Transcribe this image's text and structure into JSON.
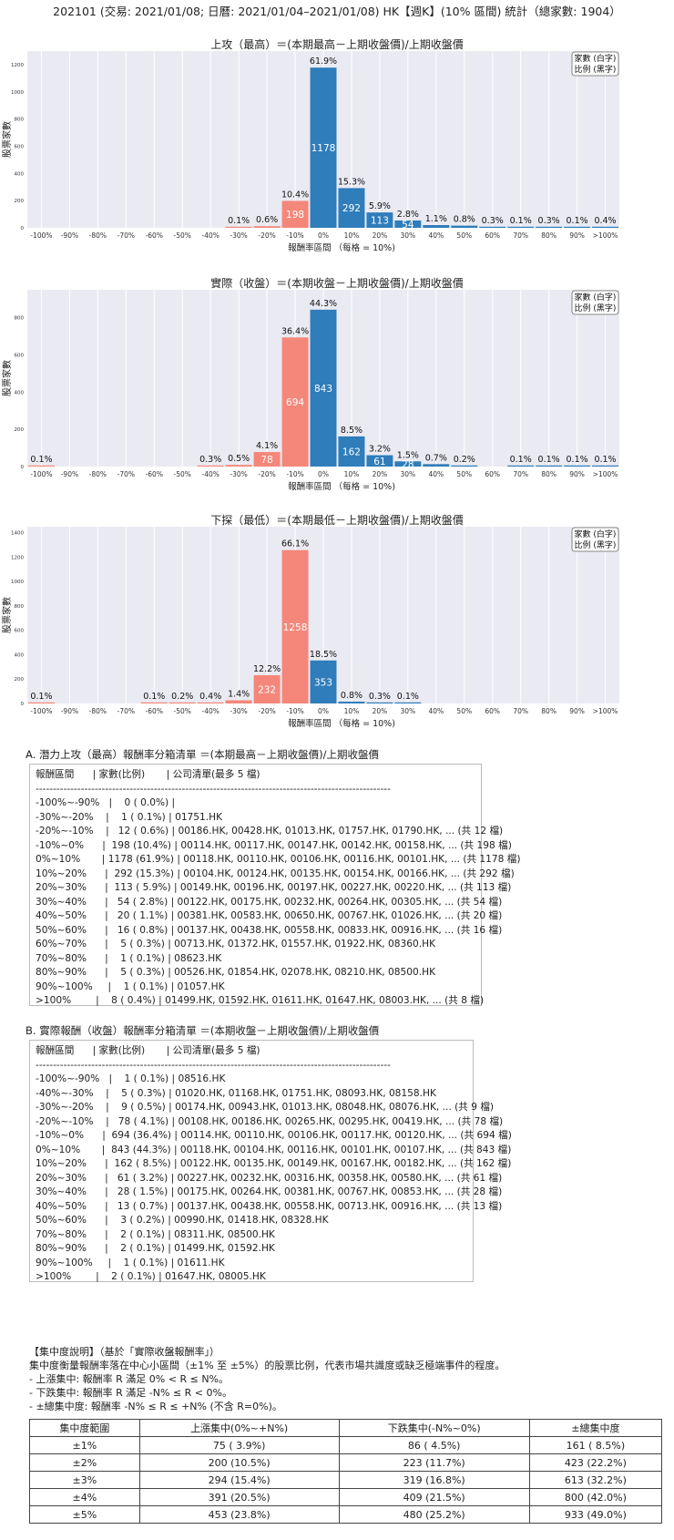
{
  "page_title": "202101 (交易: 2021/01/08; 日曆: 2021/01/04–2021/01/08) HK【週K】(10% 區間) 統計（總家數: 1904）",
  "legend_line1": "家數 (白字)",
  "legend_line2": "比例 (黑字)",
  "chart_data": [
    {
      "type": "bar",
      "title": "上攻（最高）＝(本期最高－上期收盤價)/上期收盤價",
      "xlabel": "報酬率區間 （每格 = 10%)",
      "ylabel": "股票家數",
      "ylim": [
        0,
        1300
      ],
      "yticks": [
        0,
        200,
        400,
        600,
        800,
        1000,
        1200
      ],
      "categories": [
        "-100%",
        "-90%",
        "-80%",
        "-70%",
        "-60%",
        "-50%",
        "-40%",
        "-30%",
        "-20%",
        "-10%",
        "0%",
        "10%",
        "20%",
        "30%",
        "40%",
        "50%",
        "60%",
        "70%",
        "80%",
        "90%",
        ">100%"
      ],
      "counts": [
        0,
        0,
        0,
        0,
        0,
        0,
        0,
        1,
        12,
        198,
        1178,
        292,
        113,
        54,
        20,
        16,
        5,
        1,
        5,
        1,
        8
      ],
      "pct_labels": [
        "",
        "",
        "",
        "",
        "",
        "",
        "",
        "0.1%",
        "0.6%",
        "10.4%",
        "61.9%",
        "15.3%",
        "5.9%",
        "2.8%",
        "1.1%",
        "0.8%",
        "0.3%",
        "0.1%",
        "0.3%",
        "0.1%",
        "0.4%"
      ],
      "count_labels": [
        "",
        "",
        "",
        "",
        "",
        "",
        "",
        "",
        "",
        "198",
        "1178",
        "292",
        "113",
        "54",
        "",
        "",
        "",
        "",
        "",
        "",
        ""
      ]
    },
    {
      "type": "bar",
      "title": "實際（收盤）＝(本期收盤－上期收盤價)/上期收盤價",
      "xlabel": "報酬率區間 （每格 = 10%)",
      "ylabel": "股票家數",
      "ylim": [
        0,
        950
      ],
      "yticks": [
        0,
        200,
        400,
        600,
        800
      ],
      "categories": [
        "-100%",
        "-90%",
        "-80%",
        "-70%",
        "-60%",
        "-50%",
        "-40%",
        "-30%",
        "-20%",
        "-10%",
        "0%",
        "10%",
        "20%",
        "30%",
        "40%",
        "50%",
        "60%",
        "70%",
        "80%",
        "90%",
        ">100%"
      ],
      "counts": [
        1,
        0,
        0,
        0,
        0,
        0,
        5,
        9,
        78,
        694,
        843,
        162,
        61,
        28,
        13,
        3,
        0,
        2,
        2,
        1,
        2
      ],
      "pct_labels": [
        "0.1%",
        "",
        "",
        "",
        "",
        "",
        "0.3%",
        "0.5%",
        "4.1%",
        "36.4%",
        "44.3%",
        "8.5%",
        "3.2%",
        "1.5%",
        "0.7%",
        "0.2%",
        "",
        "0.1%",
        "0.1%",
        "0.1%",
        "0.1%"
      ],
      "count_labels": [
        "",
        "",
        "",
        "",
        "",
        "",
        "",
        "",
        "78",
        "694",
        "843",
        "162",
        "61",
        "28",
        "",
        "",
        "",
        "",
        "",
        "",
        ""
      ]
    },
    {
      "type": "bar",
      "title": "下探（最低）＝(本期最低－上期收盤價)/上期收盤價",
      "xlabel": "報酬率區間 （每格 = 10%)",
      "ylabel": "股票家數",
      "ylim": [
        0,
        1450
      ],
      "yticks": [
        0,
        200,
        400,
        600,
        800,
        1000,
        1200,
        1400
      ],
      "categories": [
        "-100%",
        "-90%",
        "-80%",
        "-70%",
        "-60%",
        "-50%",
        "-40%",
        "-30%",
        "-20%",
        "-10%",
        "0%",
        "10%",
        "20%",
        "30%",
        "40%",
        "50%",
        "60%",
        "70%",
        "80%",
        "90%",
        ">100%"
      ],
      "counts": [
        1,
        0,
        0,
        0,
        1,
        4,
        8,
        26,
        232,
        1258,
        353,
        15,
        5,
        1,
        0,
        0,
        0,
        0,
        0,
        0,
        0
      ],
      "pct_labels": [
        "0.1%",
        "",
        "",
        "",
        "0.1%",
        "0.2%",
        "0.4%",
        "1.4%",
        "12.2%",
        "66.1%",
        "18.5%",
        "0.8%",
        "0.3%",
        "0.1%",
        "",
        "",
        "",
        "",
        "",
        "",
        ""
      ],
      "count_labels": [
        "",
        "",
        "",
        "",
        "",
        "",
        "",
        "",
        "232",
        "1258",
        "353",
        "",
        "",
        "",
        "",
        "",
        "",
        "",
        "",
        "",
        ""
      ]
    }
  ],
  "section_a": {
    "title": "A. 潛力上攻（最高）報酬率分箱清單 ＝(本期最高－上期收盤價)/上期收盤價",
    "lines": [
      "報酬區間      | 家數(比例)       | 公司清單(最多 5 檔)",
      "------------------------------------------------------------------------------------------------------",
      "-100%~-90%   |    0 ( 0.0%) |",
      "-30%~-20%    |    1 ( 0.1%) | 01751.HK",
      "-20%~-10%    |   12 ( 0.6%) | 00186.HK, 00428.HK, 01013.HK, 01757.HK, 01790.HK, ... (共 12 檔)",
      "-10%~0%      |  198 (10.4%) | 00114.HK, 00117.HK, 00147.HK, 00142.HK, 00158.HK, ... (共 198 檔)",
      "0%~10%       | 1178 (61.9%) | 00118.HK, 00110.HK, 00106.HK, 00116.HK, 00101.HK, ... (共 1178 檔)",
      "10%~20%      |  292 (15.3%) | 00104.HK, 00124.HK, 00135.HK, 00154.HK, 00166.HK, ... (共 292 檔)",
      "20%~30%      |  113 ( 5.9%) | 00149.HK, 00196.HK, 00197.HK, 00227.HK, 00220.HK, ... (共 113 檔)",
      "30%~40%      |   54 ( 2.8%) | 00122.HK, 00175.HK, 00232.HK, 00264.HK, 00305.HK, ... (共 54 檔)",
      "40%~50%      |   20 ( 1.1%) | 00381.HK, 00583.HK, 00650.HK, 00767.HK, 01026.HK, ... (共 20 檔)",
      "50%~60%      |   16 ( 0.8%) | 00137.HK, 00438.HK, 00558.HK, 00833.HK, 00916.HK, ... (共 16 檔)",
      "60%~70%      |    5 ( 0.3%) | 00713.HK, 01372.HK, 01557.HK, 01922.HK, 08360.HK",
      "70%~80%      |    1 ( 0.1%) | 08623.HK",
      "80%~90%      |    5 ( 0.3%) | 00526.HK, 01854.HK, 02078.HK, 08210.HK, 08500.HK",
      "90%~100%     |    1 ( 0.1%) | 01057.HK",
      ">100%        |    8 ( 0.4%) | 01499.HK, 01592.HK, 01611.HK, 01647.HK, 08003.HK, ... (共 8 檔)"
    ]
  },
  "section_b": {
    "title": "B. 實際報酬（收盤）報酬率分箱清單 ＝(本期收盤－上期收盤價)/上期收盤價",
    "lines": [
      "報酬區間      | 家數(比例)       | 公司清單(最多 5 檔)",
      "------------------------------------------------------------------------------------------------------",
      "-100%~-90%   |    1 ( 0.1%) | 08516.HK",
      "-40%~-30%    |    5 ( 0.3%) | 01020.HK, 01168.HK, 01751.HK, 08093.HK, 08158.HK",
      "-30%~-20%    |    9 ( 0.5%) | 00174.HK, 00943.HK, 01013.HK, 08048.HK, 08076.HK, ... (共 9 檔)",
      "-20%~-10%    |   78 ( 4.1%) | 00108.HK, 00186.HK, 00265.HK, 00295.HK, 00419.HK, ... (共 78 檔)",
      "-10%~0%      |  694 (36.4%) | 00114.HK, 00110.HK, 00106.HK, 00117.HK, 00120.HK, ... (共 694 檔)",
      "0%~10%       |  843 (44.3%) | 00118.HK, 00104.HK, 00116.HK, 00101.HK, 00107.HK, ... (共 843 檔)",
      "10%~20%      |  162 ( 8.5%) | 00122.HK, 00135.HK, 00149.HK, 00167.HK, 00182.HK, ... (共 162 檔)",
      "20%~30%      |   61 ( 3.2%) | 00227.HK, 00232.HK, 00316.HK, 00358.HK, 00580.HK, ... (共 61 檔)",
      "30%~40%      |   28 ( 1.5%) | 00175.HK, 00264.HK, 00381.HK, 00767.HK, 00853.HK, ... (共 28 檔)",
      "40%~50%      |   13 ( 0.7%) | 00137.HK, 00438.HK, 00558.HK, 00713.HK, 00916.HK, ... (共 13 檔)",
      "50%~60%      |    3 ( 0.2%) | 00990.HK, 01418.HK, 08328.HK",
      "70%~80%      |    2 ( 0.1%) | 08311.HK, 08500.HK",
      "80%~90%      |    2 ( 0.1%) | 01499.HK, 01592.HK",
      "90%~100%     |    1 ( 0.1%) | 01611.HK",
      ">100%        |    2 ( 0.1%) | 01647.HK, 08005.HK"
    ]
  },
  "concentration": {
    "heading": "【集中度說明】（基於「實際收盤報酬率」）",
    "desc": "集中度衡量報酬率落在中心小區間（±1% 至 ±5%）的股票比例，代表市場共識度或缺乏極端事件的程度。",
    "bullets": [
      " - 上漲集中: 報酬率 R 滿足 0% < R ≤ N%。",
      " - 下跌集中: 報酬率 R 滿足 -N% ≤ R < 0%。",
      " - ±總集中度: 報酬率 -N% ≤ R ≤ +N% (不含 R=0%)。"
    ],
    "table_headers": [
      "集中度範圍",
      "上漲集中(0%~+N%)",
      "下跌集中(-N%~0%)",
      "±總集中度"
    ],
    "table_rows": [
      [
        "±1%",
        "75 ( 3.9%)",
        "86 ( 4.5%)",
        "161 ( 8.5%)"
      ],
      [
        "±2%",
        "200 (10.5%)",
        "223 (11.7%)",
        "423 (22.2%)"
      ],
      [
        "±3%",
        "294 (15.4%)",
        "319 (16.8%)",
        "613 (32.2%)"
      ],
      [
        "±4%",
        "391 (20.5%)",
        "409 (21.5%)",
        "800 (42.0%)"
      ],
      [
        "±5%",
        "453 (23.8%)",
        "480 (25.2%)",
        "933 (49.0%)"
      ]
    ]
  },
  "colors": {
    "negative_bar": "#f4877a",
    "positive_bar": "#2f7dbb",
    "plot_bg": "#eaeaf2"
  }
}
